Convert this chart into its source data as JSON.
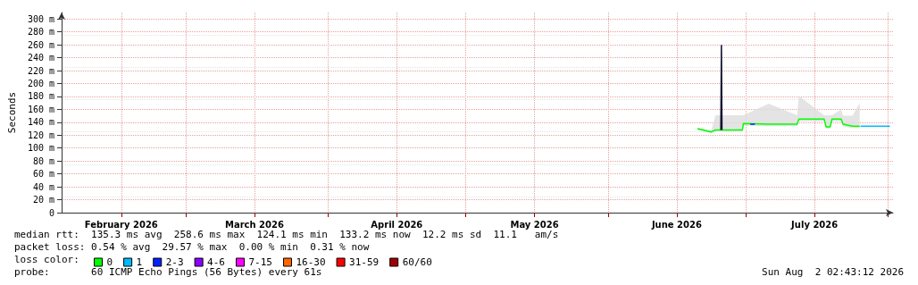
{
  "chart_data": {
    "type": "line",
    "ylabel": "Seconds",
    "legend_title": "loss color:",
    "legend": "bottom",
    "grid": true,
    "marker": "none",
    "line_style": "solid",
    "xlim": [
      "2026-02-02T00:00",
      "2026-08-02T02:00"
    ],
    "xticks": [
      {
        "value": "2026-02-15",
        "label": "February 2026"
      },
      {
        "value": "2026-03-01",
        "label": null
      },
      {
        "value": "2026-03-16",
        "label": "March 2026"
      },
      {
        "value": "2026-04-01",
        "label": null
      },
      {
        "value": "2026-04-16",
        "label": "April 2026"
      },
      {
        "value": "2026-05-01",
        "label": null
      },
      {
        "value": "2026-05-16",
        "label": "May 2026"
      },
      {
        "value": "2026-06-01",
        "label": null
      },
      {
        "value": "2026-06-16",
        "label": "June 2026"
      },
      {
        "value": "2026-07-01",
        "label": null
      },
      {
        "value": "2026-07-16",
        "label": "July 2026"
      },
      {
        "value": "2026-08-01",
        "label": null
      }
    ],
    "ylim": [
      0,
      310
    ],
    "yticks": [
      0,
      {
        "value": 20,
        "label": "20 m"
      },
      {
        "value": 40,
        "label": "40 m"
      },
      {
        "value": 60,
        "label": "60 m"
      },
      {
        "value": 80,
        "label": "80 m"
      },
      {
        "value": 100,
        "label": "100 m"
      },
      {
        "value": 120,
        "label": "120 m"
      },
      {
        "value": 140,
        "label": "140 m"
      },
      {
        "value": 160,
        "label": "160 m"
      },
      {
        "value": 180,
        "label": "180 m"
      },
      {
        "value": 200,
        "label": "200 m"
      },
      {
        "value": 220,
        "label": "220 m"
      },
      {
        "value": 240,
        "label": "240 m"
      },
      {
        "value": 260,
        "label": "260 m"
      },
      {
        "value": 280,
        "label": "280 m"
      },
      {
        "value": 300,
        "label": "300 m"
      }
    ],
    "series": [
      {
        "name": "0",
        "color": "#00ff00",
        "x": [
          "2026-06-20T12:00",
          "2026-06-23T12:00",
          "2026-06-24T10:00",
          "2026-06-30T07:00",
          "2026-06-30T12:00",
          "2026-07-06T00:00",
          "2026-07-12T05:00",
          "2026-07-12T14:00",
          "2026-07-18T02:00",
          "2026-07-18T12:00",
          "2026-07-19T10:00",
          "2026-07-19T19:00",
          "2026-07-21T19:00",
          "2026-07-22T05:00",
          "2026-07-24T07:00",
          "2026-07-25T20:00"
        ],
        "values": [
          130,
          125,
          128,
          128,
          138,
          137,
          137,
          145,
          145,
          133,
          133,
          145,
          145,
          137,
          134,
          134
        ],
        "lower": [
          128,
          123,
          126,
          126,
          135,
          134,
          134,
          141,
          141,
          130,
          130,
          141,
          141,
          133,
          131,
          131
        ],
        "upper": [
          131,
          127,
          151,
          151,
          151,
          169,
          151,
          181,
          151,
          151,
          151,
          151,
          160,
          150,
          150,
          170
        ]
      },
      {
        "name": "1",
        "color": "#00bbff",
        "x": [
          "2026-07-26T00:00",
          "2026-08-01T10:00"
        ],
        "values": [
          134,
          134
        ]
      },
      {
        "name": "2-3",
        "color": "#0022ff",
        "x": [
          "2026-07-02T00:00",
          "2026-07-03T00:00"
        ],
        "values": [
          137,
          137
        ]
      },
      {
        "name": "4-6",
        "color": "#8a00ff"
      },
      {
        "name": "7-15",
        "color": "#ff00ff"
      },
      {
        "name": "16-30",
        "color": "#ff6600"
      },
      {
        "name": "31-59",
        "color": "#ff0000"
      },
      {
        "name": "60/60",
        "color": "#a10000"
      },
      {
        "color": "#101030",
        "x": [
          "2026-06-25T14:00",
          "2026-06-25T17:00",
          "2026-06-25T20:00"
        ],
        "values": [
          128,
          259,
          128
        ]
      }
    ],
    "annotations": [
      "median rtt:  135.3 ms avg  258.6 ms max  124.1 ms min  133.2 ms now  12.2 ms sd  11.1   am/s",
      "packet loss: 0.54 % avg  29.57 % max  0.00 % min  0.31 % now",
      "probe:       60 ICMP Echo Pings (56 Bytes) every 61s",
      "Sun Aug  2 02:43:12 2026"
    ]
  }
}
